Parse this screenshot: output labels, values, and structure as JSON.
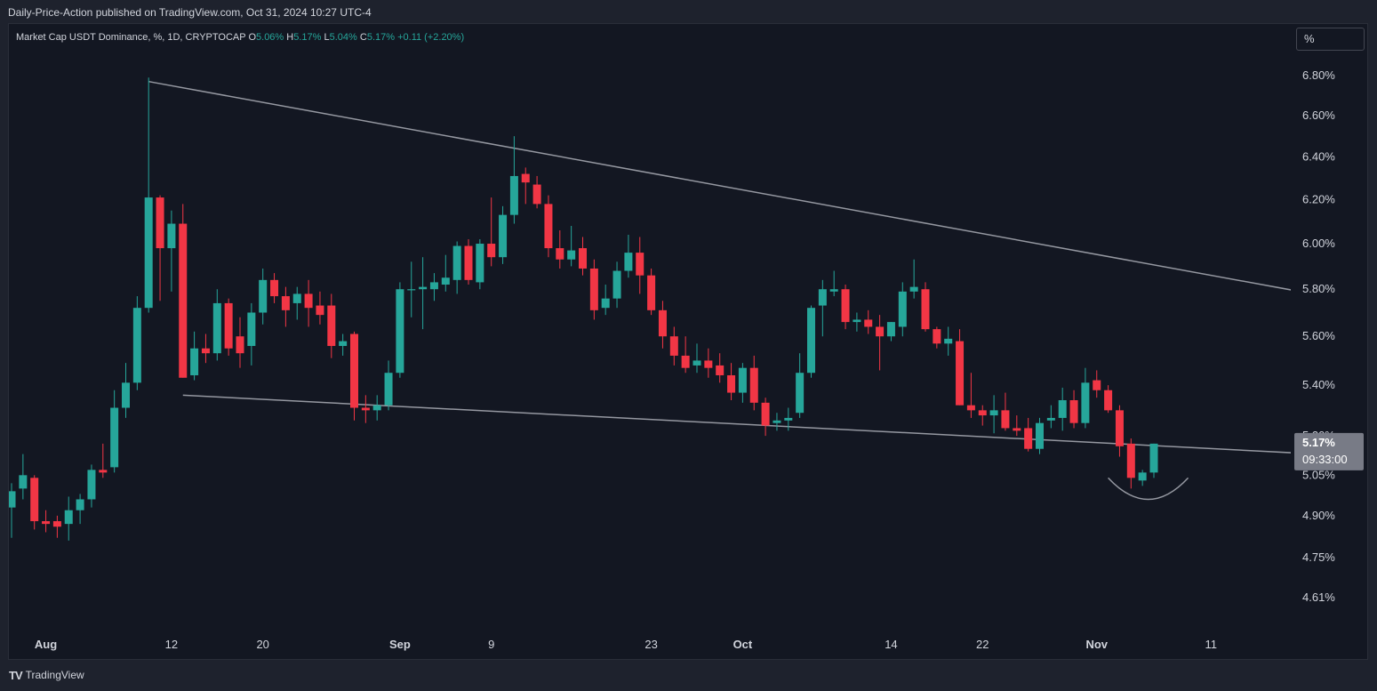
{
  "header": {
    "publisher_line": "Daily-Price-Action published on TradingView.com, Oct 31, 2024 10:27 UTC-4"
  },
  "legend": {
    "symbol": "Market Cap USDT Dominance, %, 1D, CRYPTOCAP",
    "o_label": "O",
    "o_value": "5.06%",
    "h_label": "H",
    "h_value": "5.17%",
    "l_label": "L",
    "l_value": "5.04%",
    "c_label": "C",
    "c_value": "5.17%",
    "change": "+0.11 (+2.20%)"
  },
  "scale_button": "%",
  "footer": {
    "logo": "TV",
    "brand": "TradingView"
  },
  "colors": {
    "up": "#26a69a",
    "down": "#f23645",
    "trendline": "#9598a1",
    "axis_text": "#d1d4dc",
    "price_label_bg": "#787b86"
  },
  "chart_data": {
    "type": "candlestick",
    "log_scale": true,
    "y_ticks": [
      "6.80%",
      "6.60%",
      "6.40%",
      "6.20%",
      "6.00%",
      "5.80%",
      "5.60%",
      "5.40%",
      "5.20%",
      "5.05%",
      "4.90%",
      "4.75%",
      "4.61%"
    ],
    "x_ticks": [
      "Aug",
      "12",
      "20",
      "Sep",
      "9",
      "23",
      "Oct",
      "14",
      "22",
      "Nov",
      "11"
    ],
    "last_price_label": "5.17%",
    "countdown_label": "09:33:00",
    "candles": [
      {
        "date": "2024-07-29",
        "o": 4.93,
        "h": 5.02,
        "l": 4.82,
        "c": 4.99
      },
      {
        "date": "2024-07-30",
        "o": 5.0,
        "h": 5.13,
        "l": 4.96,
        "c": 5.05
      },
      {
        "date": "2024-07-31",
        "o": 5.04,
        "h": 5.05,
        "l": 4.85,
        "c": 4.88
      },
      {
        "date": "2024-08-01",
        "o": 4.88,
        "h": 4.92,
        "l": 4.84,
        "c": 4.87
      },
      {
        "date": "2024-08-02",
        "o": 4.88,
        "h": 4.9,
        "l": 4.82,
        "c": 4.86
      },
      {
        "date": "2024-08-03",
        "o": 4.87,
        "h": 4.97,
        "l": 4.81,
        "c": 4.92
      },
      {
        "date": "2024-08-04",
        "o": 4.92,
        "h": 4.98,
        "l": 4.87,
        "c": 4.96
      },
      {
        "date": "2024-08-05",
        "o": 4.96,
        "h": 5.09,
        "l": 4.93,
        "c": 5.07
      },
      {
        "date": "2024-08-06",
        "o": 5.07,
        "h": 5.17,
        "l": 5.04,
        "c": 5.06
      },
      {
        "date": "2024-08-07",
        "o": 5.08,
        "h": 5.38,
        "l": 5.06,
        "c": 5.31
      },
      {
        "date": "2024-08-08",
        "o": 5.31,
        "h": 5.49,
        "l": 5.27,
        "c": 5.41
      },
      {
        "date": "2024-08-09",
        "o": 5.41,
        "h": 5.77,
        "l": 5.38,
        "c": 5.72
      },
      {
        "date": "2024-08-10",
        "o": 5.72,
        "h": 6.79,
        "l": 5.7,
        "c": 6.21
      },
      {
        "date": "2024-08-11",
        "o": 6.21,
        "h": 6.22,
        "l": 5.75,
        "c": 5.98
      },
      {
        "date": "2024-08-12",
        "o": 5.98,
        "h": 6.15,
        "l": 5.79,
        "c": 6.09
      },
      {
        "date": "2024-08-13",
        "o": 6.09,
        "h": 6.18,
        "l": 5.43,
        "c": 5.43
      },
      {
        "date": "2024-08-14",
        "o": 5.44,
        "h": 5.62,
        "l": 5.42,
        "c": 5.55
      },
      {
        "date": "2024-08-15",
        "o": 5.55,
        "h": 5.61,
        "l": 5.49,
        "c": 5.53
      },
      {
        "date": "2024-08-16",
        "o": 5.53,
        "h": 5.8,
        "l": 5.5,
        "c": 5.74
      },
      {
        "date": "2024-08-17",
        "o": 5.74,
        "h": 5.76,
        "l": 5.52,
        "c": 5.55
      },
      {
        "date": "2024-08-18",
        "o": 5.6,
        "h": 5.68,
        "l": 5.47,
        "c": 5.53
      },
      {
        "date": "2024-08-19",
        "o": 5.56,
        "h": 5.74,
        "l": 5.48,
        "c": 5.7
      },
      {
        "date": "2024-08-20",
        "o": 5.7,
        "h": 5.89,
        "l": 5.65,
        "c": 5.84
      },
      {
        "date": "2024-08-21",
        "o": 5.84,
        "h": 5.87,
        "l": 5.74,
        "c": 5.77
      },
      {
        "date": "2024-08-22",
        "o": 5.77,
        "h": 5.81,
        "l": 5.64,
        "c": 5.71
      },
      {
        "date": "2024-08-23",
        "o": 5.74,
        "h": 5.81,
        "l": 5.67,
        "c": 5.78
      },
      {
        "date": "2024-08-24",
        "o": 5.78,
        "h": 5.84,
        "l": 5.64,
        "c": 5.72
      },
      {
        "date": "2024-08-25",
        "o": 5.73,
        "h": 5.79,
        "l": 5.65,
        "c": 5.69
      },
      {
        "date": "2024-08-26",
        "o": 5.73,
        "h": 5.78,
        "l": 5.51,
        "c": 5.56
      },
      {
        "date": "2024-08-27",
        "o": 5.56,
        "h": 5.61,
        "l": 5.52,
        "c": 5.58
      },
      {
        "date": "2024-08-28",
        "o": 5.61,
        "h": 5.62,
        "l": 5.26,
        "c": 5.31
      },
      {
        "date": "2024-08-29",
        "o": 5.31,
        "h": 5.36,
        "l": 5.25,
        "c": 5.3
      },
      {
        "date": "2024-08-30",
        "o": 5.3,
        "h": 5.36,
        "l": 5.26,
        "c": 5.32
      },
      {
        "date": "2024-08-31",
        "o": 5.32,
        "h": 5.5,
        "l": 5.3,
        "c": 5.45
      },
      {
        "date": "2024-09-01",
        "o": 5.45,
        "h": 5.83,
        "l": 5.43,
        "c": 5.8
      },
      {
        "date": "2024-09-02",
        "o": 5.8,
        "h": 5.92,
        "l": 5.68,
        "c": 5.8
      },
      {
        "date": "2024-09-03",
        "o": 5.8,
        "h": 5.94,
        "l": 5.63,
        "c": 5.81
      },
      {
        "date": "2024-09-04",
        "o": 5.8,
        "h": 5.87,
        "l": 5.75,
        "c": 5.83
      },
      {
        "date": "2024-09-05",
        "o": 5.82,
        "h": 5.95,
        "l": 5.79,
        "c": 5.85
      },
      {
        "date": "2024-09-06",
        "o": 5.84,
        "h": 6.01,
        "l": 5.78,
        "c": 5.99
      },
      {
        "date": "2024-09-07",
        "o": 5.99,
        "h": 6.02,
        "l": 5.82,
        "c": 5.84
      },
      {
        "date": "2024-09-08",
        "o": 5.83,
        "h": 6.02,
        "l": 5.8,
        "c": 6.0
      },
      {
        "date": "2024-09-09",
        "o": 6.0,
        "h": 6.21,
        "l": 5.9,
        "c": 5.94
      },
      {
        "date": "2024-09-10",
        "o": 5.94,
        "h": 6.17,
        "l": 5.91,
        "c": 6.13
      },
      {
        "date": "2024-09-11",
        "o": 6.13,
        "h": 6.5,
        "l": 6.09,
        "c": 6.31
      },
      {
        "date": "2024-09-12",
        "o": 6.32,
        "h": 6.35,
        "l": 6.18,
        "c": 6.28
      },
      {
        "date": "2024-09-13",
        "o": 6.27,
        "h": 6.31,
        "l": 6.16,
        "c": 6.18
      },
      {
        "date": "2024-09-14",
        "o": 6.18,
        "h": 6.22,
        "l": 5.94,
        "c": 5.98
      },
      {
        "date": "2024-09-15",
        "o": 5.98,
        "h": 6.06,
        "l": 5.89,
        "c": 5.93
      },
      {
        "date": "2024-09-16",
        "o": 5.93,
        "h": 6.08,
        "l": 5.9,
        "c": 5.97
      },
      {
        "date": "2024-09-17",
        "o": 5.98,
        "h": 6.03,
        "l": 5.86,
        "c": 5.89
      },
      {
        "date": "2024-09-18",
        "o": 5.89,
        "h": 5.93,
        "l": 5.67,
        "c": 5.71
      },
      {
        "date": "2024-09-19",
        "o": 5.72,
        "h": 5.82,
        "l": 5.69,
        "c": 5.76
      },
      {
        "date": "2024-09-20",
        "o": 5.76,
        "h": 5.92,
        "l": 5.72,
        "c": 5.88
      },
      {
        "date": "2024-09-21",
        "o": 5.88,
        "h": 6.04,
        "l": 5.85,
        "c": 5.96
      },
      {
        "date": "2024-09-22",
        "o": 5.96,
        "h": 6.03,
        "l": 5.78,
        "c": 5.86
      },
      {
        "date": "2024-09-23",
        "o": 5.86,
        "h": 5.89,
        "l": 5.69,
        "c": 5.71
      },
      {
        "date": "2024-09-24",
        "o": 5.71,
        "h": 5.75,
        "l": 5.55,
        "c": 5.6
      },
      {
        "date": "2024-09-25",
        "o": 5.6,
        "h": 5.64,
        "l": 5.48,
        "c": 5.52
      },
      {
        "date": "2024-09-26",
        "o": 5.52,
        "h": 5.6,
        "l": 5.45,
        "c": 5.47
      },
      {
        "date": "2024-09-27",
        "o": 5.48,
        "h": 5.57,
        "l": 5.45,
        "c": 5.5
      },
      {
        "date": "2024-09-28",
        "o": 5.5,
        "h": 5.55,
        "l": 5.43,
        "c": 5.47
      },
      {
        "date": "2024-09-29",
        "o": 5.48,
        "h": 5.53,
        "l": 5.41,
        "c": 5.44
      },
      {
        "date": "2024-09-30",
        "o": 5.44,
        "h": 5.49,
        "l": 5.34,
        "c": 5.37
      },
      {
        "date": "2024-10-01",
        "o": 5.37,
        "h": 5.49,
        "l": 5.33,
        "c": 5.47
      },
      {
        "date": "2024-10-02",
        "o": 5.47,
        "h": 5.52,
        "l": 5.3,
        "c": 5.33
      },
      {
        "date": "2024-10-03",
        "o": 5.33,
        "h": 5.35,
        "l": 5.2,
        "c": 5.24
      },
      {
        "date": "2024-10-04",
        "o": 5.25,
        "h": 5.29,
        "l": 5.22,
        "c": 5.26
      },
      {
        "date": "2024-10-05",
        "o": 5.26,
        "h": 5.31,
        "l": 5.22,
        "c": 5.27
      },
      {
        "date": "2024-10-06",
        "o": 5.29,
        "h": 5.53,
        "l": 5.27,
        "c": 5.45
      },
      {
        "date": "2024-10-07",
        "o": 5.45,
        "h": 5.73,
        "l": 5.43,
        "c": 5.72
      },
      {
        "date": "2024-10-08",
        "o": 5.73,
        "h": 5.84,
        "l": 5.6,
        "c": 5.8
      },
      {
        "date": "2024-10-09",
        "o": 5.79,
        "h": 5.88,
        "l": 5.77,
        "c": 5.8
      },
      {
        "date": "2024-10-10",
        "o": 5.8,
        "h": 5.82,
        "l": 5.63,
        "c": 5.66
      },
      {
        "date": "2024-10-11",
        "o": 5.66,
        "h": 5.7,
        "l": 5.62,
        "c": 5.67
      },
      {
        "date": "2024-10-12",
        "o": 5.67,
        "h": 5.71,
        "l": 5.61,
        "c": 5.64
      },
      {
        "date": "2024-10-13",
        "o": 5.64,
        "h": 5.69,
        "l": 5.46,
        "c": 5.6
      },
      {
        "date": "2024-10-14",
        "o": 5.6,
        "h": 5.66,
        "l": 5.58,
        "c": 5.66
      },
      {
        "date": "2024-10-15",
        "o": 5.64,
        "h": 5.83,
        "l": 5.6,
        "c": 5.79
      },
      {
        "date": "2024-10-16",
        "o": 5.79,
        "h": 5.93,
        "l": 5.76,
        "c": 5.81
      },
      {
        "date": "2024-10-17",
        "o": 5.8,
        "h": 5.83,
        "l": 5.62,
        "c": 5.63
      },
      {
        "date": "2024-10-18",
        "o": 5.63,
        "h": 5.64,
        "l": 5.55,
        "c": 5.57
      },
      {
        "date": "2024-10-19",
        "o": 5.57,
        "h": 5.64,
        "l": 5.52,
        "c": 5.59
      },
      {
        "date": "2024-10-20",
        "o": 5.58,
        "h": 5.63,
        "l": 5.32,
        "c": 5.32
      },
      {
        "date": "2024-10-21",
        "o": 5.32,
        "h": 5.45,
        "l": 5.27,
        "c": 5.3
      },
      {
        "date": "2024-10-22",
        "o": 5.3,
        "h": 5.32,
        "l": 5.24,
        "c": 5.28
      },
      {
        "date": "2024-10-23",
        "o": 5.28,
        "h": 5.36,
        "l": 5.21,
        "c": 5.3
      },
      {
        "date": "2024-10-24",
        "o": 5.3,
        "h": 5.37,
        "l": 5.22,
        "c": 5.23
      },
      {
        "date": "2024-10-25",
        "o": 5.23,
        "h": 5.28,
        "l": 5.2,
        "c": 5.22
      },
      {
        "date": "2024-10-26",
        "o": 5.23,
        "h": 5.27,
        "l": 5.14,
        "c": 5.15
      },
      {
        "date": "2024-10-27",
        "o": 5.15,
        "h": 5.27,
        "l": 5.13,
        "c": 5.25
      },
      {
        "date": "2024-10-28",
        "o": 5.26,
        "h": 5.32,
        "l": 5.23,
        "c": 5.27
      },
      {
        "date": "2024-10-29",
        "o": 5.27,
        "h": 5.39,
        "l": 5.22,
        "c": 5.34
      },
      {
        "date": "2024-10-30",
        "o": 5.34,
        "h": 5.38,
        "l": 5.23,
        "c": 5.25
      },
      {
        "date": "2024-10-31",
        "o": 5.25,
        "h": 5.47,
        "l": 5.23,
        "c": 5.41
      },
      {
        "date": "2024-11-01",
        "o": 5.42,
        "h": 5.46,
        "l": 5.35,
        "c": 5.38
      },
      {
        "date": "2024-11-02",
        "o": 5.38,
        "h": 5.4,
        "l": 5.29,
        "c": 5.3
      },
      {
        "date": "2024-11-03",
        "o": 5.3,
        "h": 5.32,
        "l": 5.12,
        "c": 5.16
      },
      {
        "date": "2024-11-04",
        "o": 5.17,
        "h": 5.19,
        "l": 5.0,
        "c": 5.04
      },
      {
        "date": "2024-11-05",
        "o": 5.03,
        "h": 5.07,
        "l": 5.01,
        "c": 5.06
      },
      {
        "date": "2024-11-06",
        "o": 5.06,
        "h": 5.17,
        "l": 5.04,
        "c": 5.17
      }
    ],
    "trendlines": [
      {
        "name": "upper-trendline",
        "from": {
          "date": "2024-08-10",
          "value": 6.77
        },
        "to": {
          "date": "2024-12-08",
          "value": 5.62
        }
      },
      {
        "name": "lower-trendline",
        "from": {
          "date": "2024-08-13",
          "value": 5.36
        },
        "to": {
          "date": "2024-12-08",
          "value": 5.09
        }
      }
    ],
    "annotations": [
      {
        "type": "arc",
        "name": "bottom-arc",
        "from": {
          "date": "2024-11-02",
          "value": 5.04
        },
        "to": {
          "date": "2024-11-09",
          "value": 5.04
        },
        "depth": 4.96
      }
    ]
  }
}
